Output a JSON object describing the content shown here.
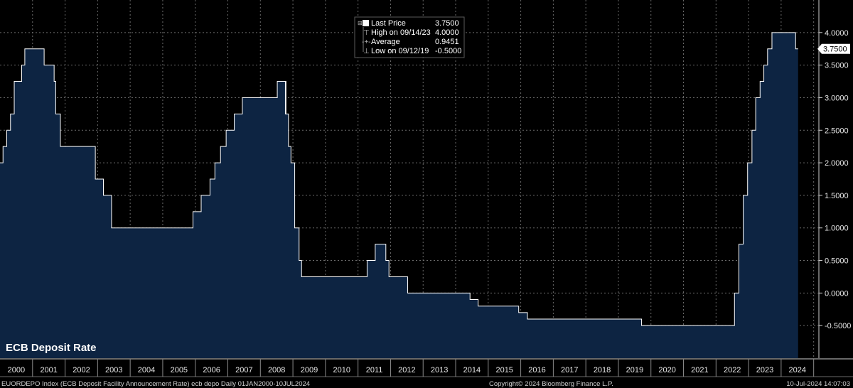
{
  "chart_data": {
    "type": "area",
    "title": "ECB Deposit Rate",
    "ylim": [
      -1.0,
      4.5
    ],
    "xlim": [
      2000.0,
      2025.16
    ],
    "y_ticks": [
      -0.5,
      0.0,
      0.5,
      1.0,
      1.5,
      2.0,
      2.5,
      3.0,
      3.5,
      4.0
    ],
    "y_tick_labels": [
      "-0.5000",
      "0.0000",
      "0.5000",
      "1.0000",
      "1.5000",
      "2.0000",
      "2.5000",
      "3.0000",
      "3.5000",
      "4.0000"
    ],
    "x_tick_labels": [
      "2000",
      "2001",
      "2002",
      "2003",
      "2004",
      "2005",
      "2006",
      "2007",
      "2008",
      "2009",
      "2010",
      "2011",
      "2012",
      "2013",
      "2014",
      "2015",
      "2016",
      "2017",
      "2018",
      "2019",
      "2020",
      "2021",
      "2022",
      "2023",
      "2024"
    ],
    "grid": true,
    "series": [
      {
        "name": "ECB Deposit Rate",
        "x": [
          "2000-01-01",
          "2000-02-04",
          "2000-03-17",
          "2000-04-28",
          "2000-06-09",
          "2000-09-01",
          "2000-10-06",
          "2001-05-11",
          "2001-08-31",
          "2001-09-18",
          "2001-11-09",
          "2002-12-06",
          "2003-03-07",
          "2003-06-06",
          "2005-12-06",
          "2006-03-08",
          "2006-06-15",
          "2006-08-09",
          "2006-10-11",
          "2006-12-13",
          "2007-03-14",
          "2007-06-13",
          "2008-07-09",
          "2008-10-08",
          "2008-10-09",
          "2008-10-15",
          "2008-11-12",
          "2008-12-10",
          "2009-01-21",
          "2009-03-11",
          "2009-04-08",
          "2011-04-13",
          "2011-07-13",
          "2011-11-09",
          "2011-12-14",
          "2012-07-11",
          "2014-06-11",
          "2014-09-10",
          "2015-12-09",
          "2016-03-16",
          "2019-09-18",
          "2022-07-27",
          "2022-09-14",
          "2022-11-02",
          "2022-12-21",
          "2023-02-08",
          "2023-03-22",
          "2023-05-10",
          "2023-06-21",
          "2023-08-02",
          "2023-09-20",
          "2024-06-12",
          "2024-07-10"
        ],
        "y": [
          2.0,
          2.25,
          2.5,
          2.75,
          3.25,
          3.5,
          3.75,
          3.5,
          3.25,
          2.75,
          2.25,
          1.75,
          1.5,
          1.0,
          1.25,
          1.5,
          1.75,
          2.0,
          2.25,
          2.5,
          2.75,
          3.0,
          3.25,
          2.75,
          3.25,
          2.75,
          2.25,
          2.0,
          1.0,
          0.5,
          0.25,
          0.5,
          0.75,
          0.5,
          0.25,
          0.0,
          -0.1,
          -0.2,
          -0.3,
          -0.4,
          -0.5,
          0.0,
          0.75,
          1.5,
          2.0,
          2.5,
          3.0,
          3.25,
          3.5,
          3.75,
          4.0,
          3.75,
          3.75
        ]
      }
    ],
    "tooltip": {
      "rows": [
        {
          "label": "Last Price",
          "value": "3.7500"
        },
        {
          "label": "High on 09/14/23",
          "value": "4.0000"
        },
        {
          "label": "Average",
          "value": "0.9451"
        },
        {
          "label": "Low on 09/12/19",
          "value": "-0.5000"
        }
      ]
    },
    "last_value_label": "3.7500",
    "colors": {
      "background": "#000000",
      "fill": "#0d2442",
      "line": "#ffffff",
      "grid": "#6a6a6a",
      "last_badge_bg": "#ffffff",
      "last_badge_text": "#000000"
    }
  },
  "footer": {
    "left": "EUORDEPO Index (ECB Deposit Facility Announcement Rate) ecb depo  Daily 01JAN2000-10JUL2024",
    "center": "Copyright© 2024 Bloomberg Finance L.P.",
    "right": "10-Jul-2024 14:07:03"
  }
}
